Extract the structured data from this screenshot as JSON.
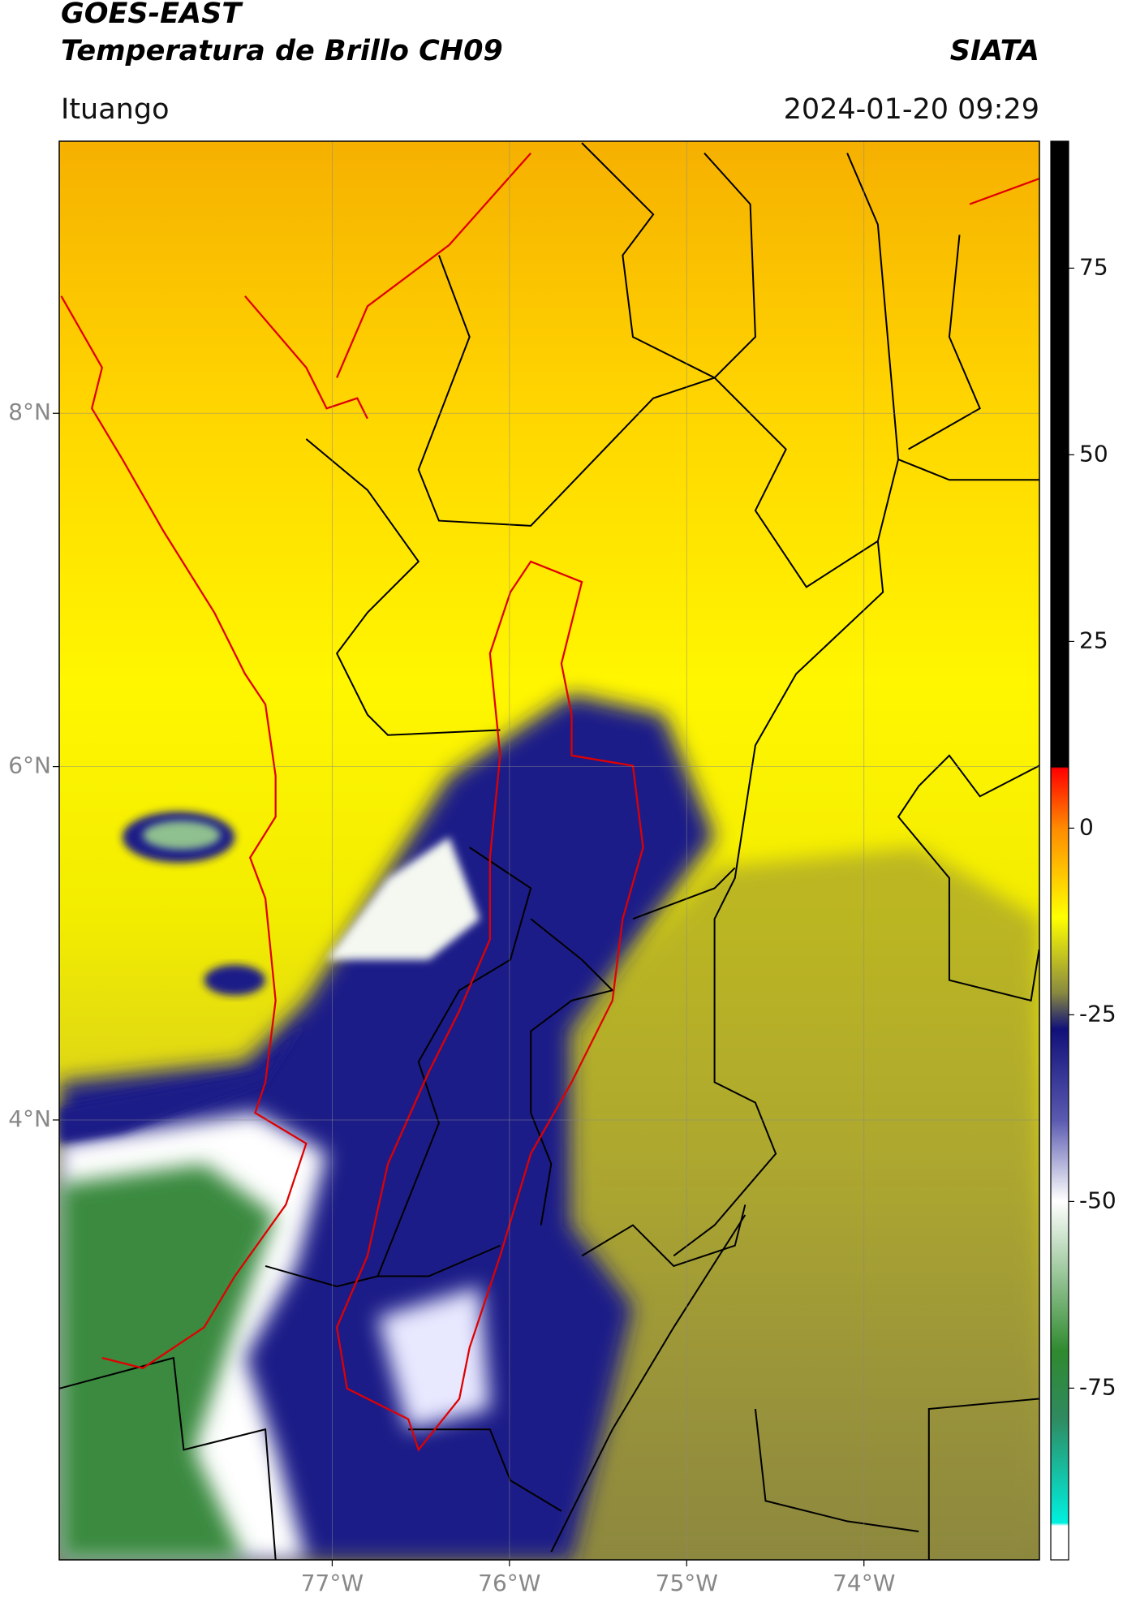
{
  "header": {
    "satellite": "GOES-EAST",
    "product": "Temperatura de Brillo CH09",
    "org": "SIATA",
    "place": "Ituango",
    "datetime": "2024-01-20 09:29"
  },
  "map": {
    "xlim": [
      -78.54,
      -73.01
    ],
    "ylim": [
      1.51,
      9.54
    ],
    "xticks": [
      {
        "value": -77,
        "label": "77°W"
      },
      {
        "value": -76,
        "label": "76°W"
      },
      {
        "value": -75,
        "label": "75°W"
      },
      {
        "value": -74,
        "label": "74°W"
      }
    ],
    "yticks": [
      {
        "value": 8,
        "label": "8°N"
      },
      {
        "value": 6,
        "label": "6°N"
      },
      {
        "value": 4,
        "label": "4°N"
      }
    ],
    "grid": true
  },
  "colorbar": {
    "clim": [
      -98,
      92
    ],
    "ticks": [
      75,
      50,
      25,
      0,
      -25,
      -50,
      -75
    ]
  }
}
